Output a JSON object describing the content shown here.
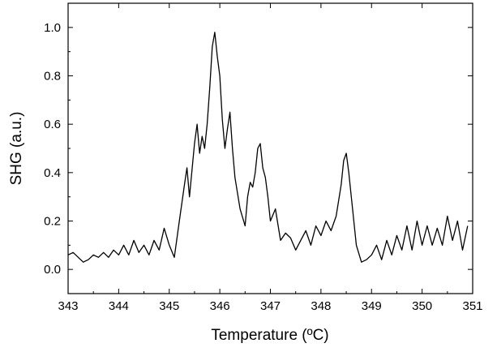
{
  "chart_data": {
    "type": "line",
    "xlabel": "Temperature (ºC)",
    "ylabel": "SHG (a.u.)",
    "xlim": [
      343,
      351
    ],
    "ylim": [
      -0.1,
      1.1
    ],
    "x_ticks": [
      343,
      344,
      345,
      346,
      347,
      348,
      349,
      350,
      351
    ],
    "x_tick_labels": [
      "343",
      "344",
      "345",
      "346",
      "347",
      "348",
      "349",
      "350",
      "351"
    ],
    "y_ticks": [
      0.0,
      0.2,
      0.4,
      0.6,
      0.8,
      1.0
    ],
    "y_tick_labels": [
      "0.0",
      "0.2",
      "0.4",
      "0.6",
      "0.8",
      "1.0"
    ],
    "grid": false,
    "line_color": "#000000",
    "series": [
      {
        "x": [
          343.0,
          343.1,
          343.2,
          343.3,
          343.4,
          343.5,
          343.6,
          343.7,
          343.8,
          343.9,
          344.0,
          344.1,
          344.2,
          344.3,
          344.4,
          344.5,
          344.6,
          344.7,
          344.8,
          344.9,
          345.0,
          345.1,
          345.2,
          345.3,
          345.35,
          345.4,
          345.5,
          345.55,
          345.6,
          345.65,
          345.7,
          345.75,
          345.8,
          345.85,
          345.9,
          345.95,
          346.0,
          346.05,
          346.1,
          346.15,
          346.2,
          346.25,
          346.3,
          346.4,
          346.5,
          346.55,
          346.6,
          346.65,
          346.7,
          346.75,
          346.8,
          346.85,
          346.9,
          346.95,
          347.0,
          347.1,
          347.2,
          347.3,
          347.4,
          347.5,
          347.6,
          347.7,
          347.8,
          347.9,
          348.0,
          348.1,
          348.2,
          348.3,
          348.4,
          348.45,
          348.5,
          348.55,
          348.6,
          348.7,
          348.8,
          348.9,
          349.0,
          349.1,
          349.2,
          349.3,
          349.4,
          349.5,
          349.6,
          349.7,
          349.8,
          349.9,
          350.0,
          350.1,
          350.2,
          350.3,
          350.4,
          350.5,
          350.6,
          350.7,
          350.8,
          350.9
        ],
        "y": [
          0.06,
          0.07,
          0.05,
          0.03,
          0.04,
          0.06,
          0.05,
          0.07,
          0.05,
          0.08,
          0.06,
          0.1,
          0.06,
          0.12,
          0.07,
          0.1,
          0.06,
          0.12,
          0.08,
          0.17,
          0.1,
          0.05,
          0.2,
          0.35,
          0.42,
          0.3,
          0.52,
          0.6,
          0.48,
          0.55,
          0.5,
          0.6,
          0.75,
          0.92,
          0.98,
          0.88,
          0.8,
          0.62,
          0.5,
          0.58,
          0.65,
          0.5,
          0.38,
          0.25,
          0.18,
          0.3,
          0.36,
          0.34,
          0.4,
          0.5,
          0.52,
          0.42,
          0.38,
          0.3,
          0.2,
          0.25,
          0.12,
          0.15,
          0.13,
          0.08,
          0.12,
          0.16,
          0.1,
          0.18,
          0.14,
          0.2,
          0.16,
          0.22,
          0.35,
          0.45,
          0.48,
          0.4,
          0.3,
          0.1,
          0.03,
          0.04,
          0.06,
          0.1,
          0.04,
          0.12,
          0.06,
          0.14,
          0.08,
          0.18,
          0.08,
          0.2,
          0.1,
          0.18,
          0.1,
          0.17,
          0.1,
          0.22,
          0.12,
          0.2,
          0.08,
          0.18
        ]
      }
    ]
  }
}
